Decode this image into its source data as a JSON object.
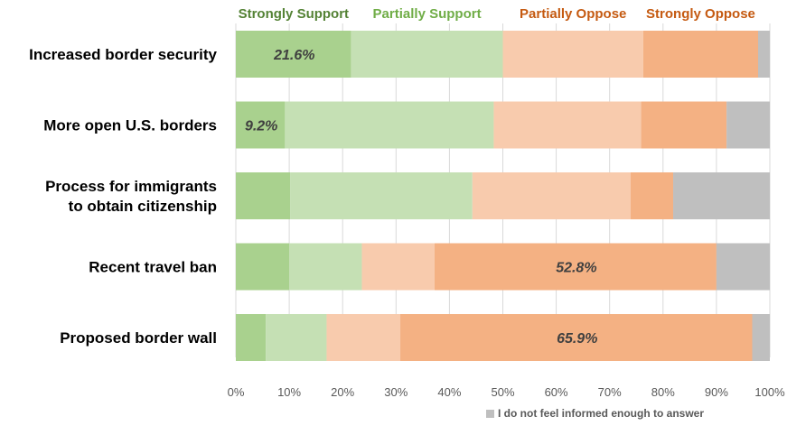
{
  "chart_data": {
    "type": "bar",
    "orientation": "horizontal",
    "stacked": true,
    "categories": [
      [
        "Increased border security"
      ],
      [
        "More open U.S. borders"
      ],
      [
        "Process for immigrants",
        "to obtain citizenship"
      ],
      [
        "Recent travel ban"
      ],
      [
        "Proposed border wall"
      ]
    ],
    "series": [
      {
        "name": "Strongly Support",
        "color": "#a9d18e",
        "header_color": "#548235",
        "values": [
          21.6,
          9.2,
          10.2,
          10.0,
          5.6
        ]
      },
      {
        "name": "Partially Support",
        "color": "#c5e0b4",
        "header_color": "#70ad47",
        "values": [
          28.4,
          39.1,
          34.1,
          13.6,
          11.4
        ]
      },
      {
        "name": "Partially Oppose",
        "color": "#f8cbad",
        "header_color": "#c55a11",
        "values": [
          26.3,
          27.6,
          29.6,
          13.6,
          13.8
        ]
      },
      {
        "name": "Strongly Oppose",
        "color": "#f4b183",
        "header_color": "#c55a11",
        "values": [
          21.5,
          16.0,
          8.0,
          52.8,
          65.9
        ]
      },
      {
        "name": "I do not feel informed enough to answer",
        "color": "#bfbfbf",
        "values": [
          2.2,
          8.1,
          18.1,
          10.0,
          3.3
        ]
      }
    ],
    "data_labels": [
      {
        "series": 0,
        "category": 0,
        "text": "21.6%"
      },
      {
        "series": 0,
        "category": 1,
        "text": "9.2%"
      },
      {
        "series": 3,
        "category": 3,
        "text": "52.8%"
      },
      {
        "series": 3,
        "category": 4,
        "text": "65.9%"
      }
    ],
    "x_ticks": [
      "0%",
      "10%",
      "20%",
      "30%",
      "40%",
      "50%",
      "60%",
      "70%",
      "80%",
      "90%",
      "100%"
    ],
    "xlim": [
      0,
      100
    ],
    "grid": true,
    "legend": {
      "placement": "bottom-right",
      "entries": [
        "I do not feel informed enough to answer"
      ]
    }
  }
}
